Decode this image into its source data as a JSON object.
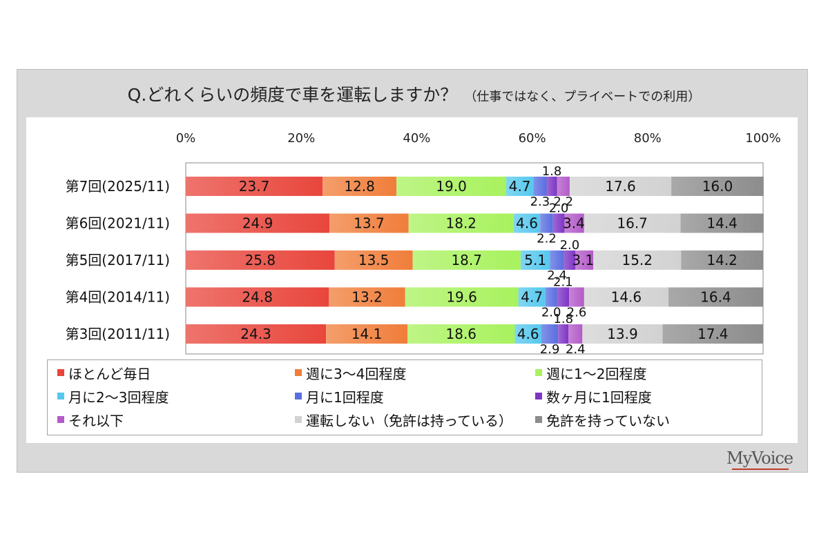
{
  "title": "Q.どれくらいの頻度で車を運転しますか？",
  "subtitle": "（仕事ではなく、プライベートでの利用）",
  "brand": "MyVoice",
  "chart_data": {
    "type": "bar",
    "orientation": "horizontal",
    "stacked": "percent",
    "title": "Q.どれくらいの頻度で車を運転しますか？",
    "subtitle": "（仕事ではなく、プライベートでの利用）",
    "categories": [
      "第7回(2025/11)",
      "第6回(2021/11)",
      "第5回(2017/11)",
      "第4回(2014/11)",
      "第3回(2011/11)"
    ],
    "x_ticks": [
      "0%",
      "20%",
      "40%",
      "60%",
      "80%",
      "100%"
    ],
    "xlim": [
      0,
      100
    ],
    "legend_position": "bottom",
    "series": [
      {
        "name": "ほとんど毎日",
        "color": "#e8463c",
        "values": [
          23.7,
          24.9,
          25.8,
          24.8,
          24.3
        ]
      },
      {
        "name": "週に3～4回程度",
        "color": "#f07d3a",
        "values": [
          12.8,
          13.7,
          13.5,
          13.2,
          14.1
        ]
      },
      {
        "name": "週に1～2回程度",
        "color": "#a8f25e",
        "values": [
          19.0,
          18.2,
          18.7,
          19.6,
          18.6
        ]
      },
      {
        "name": "月に2～3回程度",
        "color": "#56c8ee",
        "values": [
          4.7,
          4.6,
          5.1,
          4.7,
          4.6
        ]
      },
      {
        "name": "月に1回程度",
        "color": "#5a6ee0",
        "values": [
          2.3,
          2.2,
          2.4,
          2.0,
          2.9
        ]
      },
      {
        "name": "数ヶ月に1回程度",
        "color": "#7e35c4",
        "values": [
          1.8,
          2.0,
          2.0,
          2.1,
          1.8
        ]
      },
      {
        "name": "それ以下",
        "color": "#b35bc8",
        "values": [
          2.2,
          3.4,
          3.1,
          2.6,
          2.4
        ]
      },
      {
        "name": "運転しない（免許は持っている）",
        "color": "#d2d2d2",
        "values": [
          17.6,
          16.7,
          15.2,
          14.6,
          13.9
        ]
      },
      {
        "name": "免許を持っていない",
        "color": "#8c8c8c",
        "values": [
          16.0,
          14.4,
          14.2,
          16.4,
          17.4
        ]
      }
    ]
  }
}
